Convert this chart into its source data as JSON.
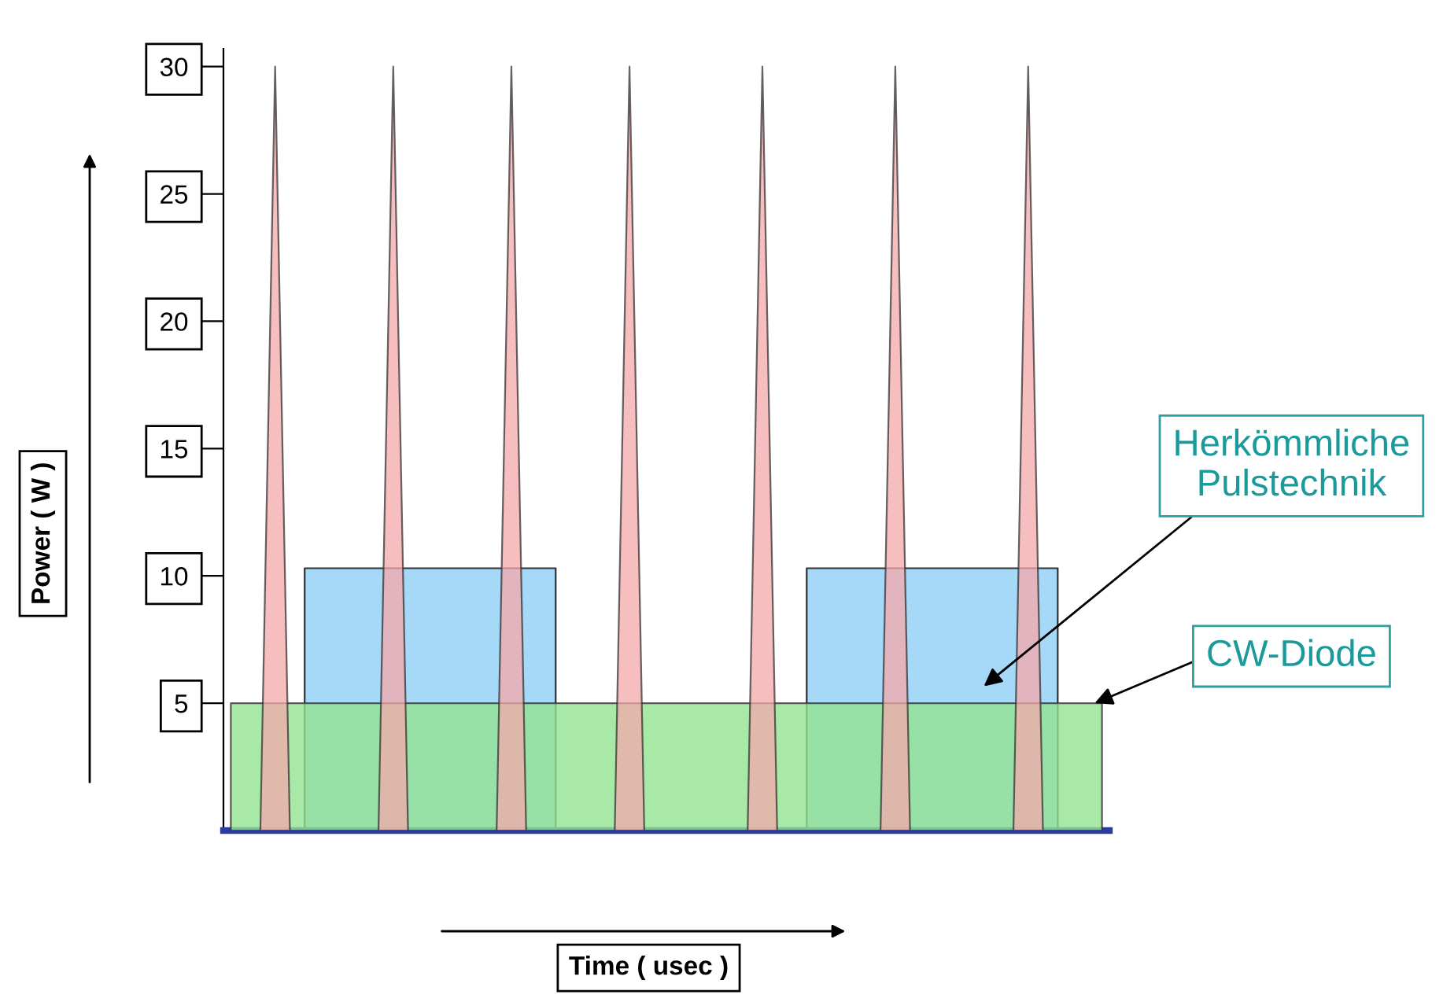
{
  "chart_data": {
    "type": "area",
    "xlabel": "Time ( usec )",
    "ylabel": "Power ( W )",
    "categories": [
      null,
      null,
      null,
      null,
      null,
      null,
      null,
      null,
      null,
      null,
      null,
      null,
      null,
      null,
      null,
      null,
      null,
      null,
      null,
      null,
      null,
      null,
      null,
      null,
      null,
      null,
      null,
      null,
      null,
      null,
      null,
      null,
      null,
      null,
      null,
      null,
      null,
      null,
      null,
      null,
      null,
      null,
      null,
      null,
      null,
      null,
      null,
      null,
      null,
      null,
      null,
      null,
      null,
      null,
      null,
      null,
      null,
      null,
      null,
      null
    ],
    "series": [
      {
        "color": "#a6d8f7",
        "values": [
          null,
          null,
          null,
          null,
          null,
          10.3,
          10.3,
          10.3,
          10.3,
          10.3,
          10.3,
          10.3,
          10.3,
          10.3,
          10.3,
          10.3,
          10.3,
          10.3,
          10.3,
          10.3,
          10.3,
          10.3,
          10.3,
          null,
          null,
          null,
          null,
          null,
          null,
          null,
          null,
          null,
          null,
          null,
          null,
          null,
          null,
          null,
          null,
          10.3,
          10.3,
          10.3,
          10.3,
          10.3,
          10.3,
          10.3,
          10.3,
          10.3,
          10.3,
          10.3,
          10.3,
          10.3,
          10.3,
          10.3,
          10.3,
          10.3,
          10.3,
          null,
          null,
          null
        ]
      },
      {
        "color": "#93e391",
        "values": [
          5,
          5,
          5,
          5,
          5,
          5,
          5,
          5,
          5,
          5,
          5,
          5,
          5,
          5,
          5,
          5,
          5,
          5,
          5,
          5,
          5,
          5,
          5,
          5,
          5,
          5,
          5,
          5,
          5,
          5,
          5,
          5,
          5,
          5,
          5,
          5,
          5,
          5,
          5,
          5,
          5,
          5,
          5,
          5,
          5,
          5,
          5,
          5,
          5,
          5,
          5,
          5,
          5,
          5,
          5,
          5,
          5,
          5,
          5,
          5
        ]
      },
      {
        "color": "#f4a8ab",
        "values": [
          null,
          null,
          0,
          30,
          0,
          null,
          null,
          null,
          null,
          null,
          0,
          30,
          0,
          null,
          null,
          null,
          null,
          null,
          0,
          30,
          0,
          null,
          null,
          null,
          null,
          null,
          0,
          30,
          0,
          null,
          null,
          null,
          null,
          null,
          null,
          0,
          30,
          0,
          null,
          null,
          null,
          null,
          null,
          null,
          0,
          30,
          0,
          null,
          null,
          null,
          null,
          null,
          null,
          0,
          30,
          0,
          null,
          null,
          null,
          null
        ]
      }
    ],
    "ylim": [
      0,
      30.7
    ],
    "yticks": [
      5,
      10,
      15,
      20,
      25,
      30
    ],
    "annotations": [
      "Herkömmliche\nPulstechnik",
      "CW-Diode"
    ],
    "grid": false,
    "legend": false
  }
}
